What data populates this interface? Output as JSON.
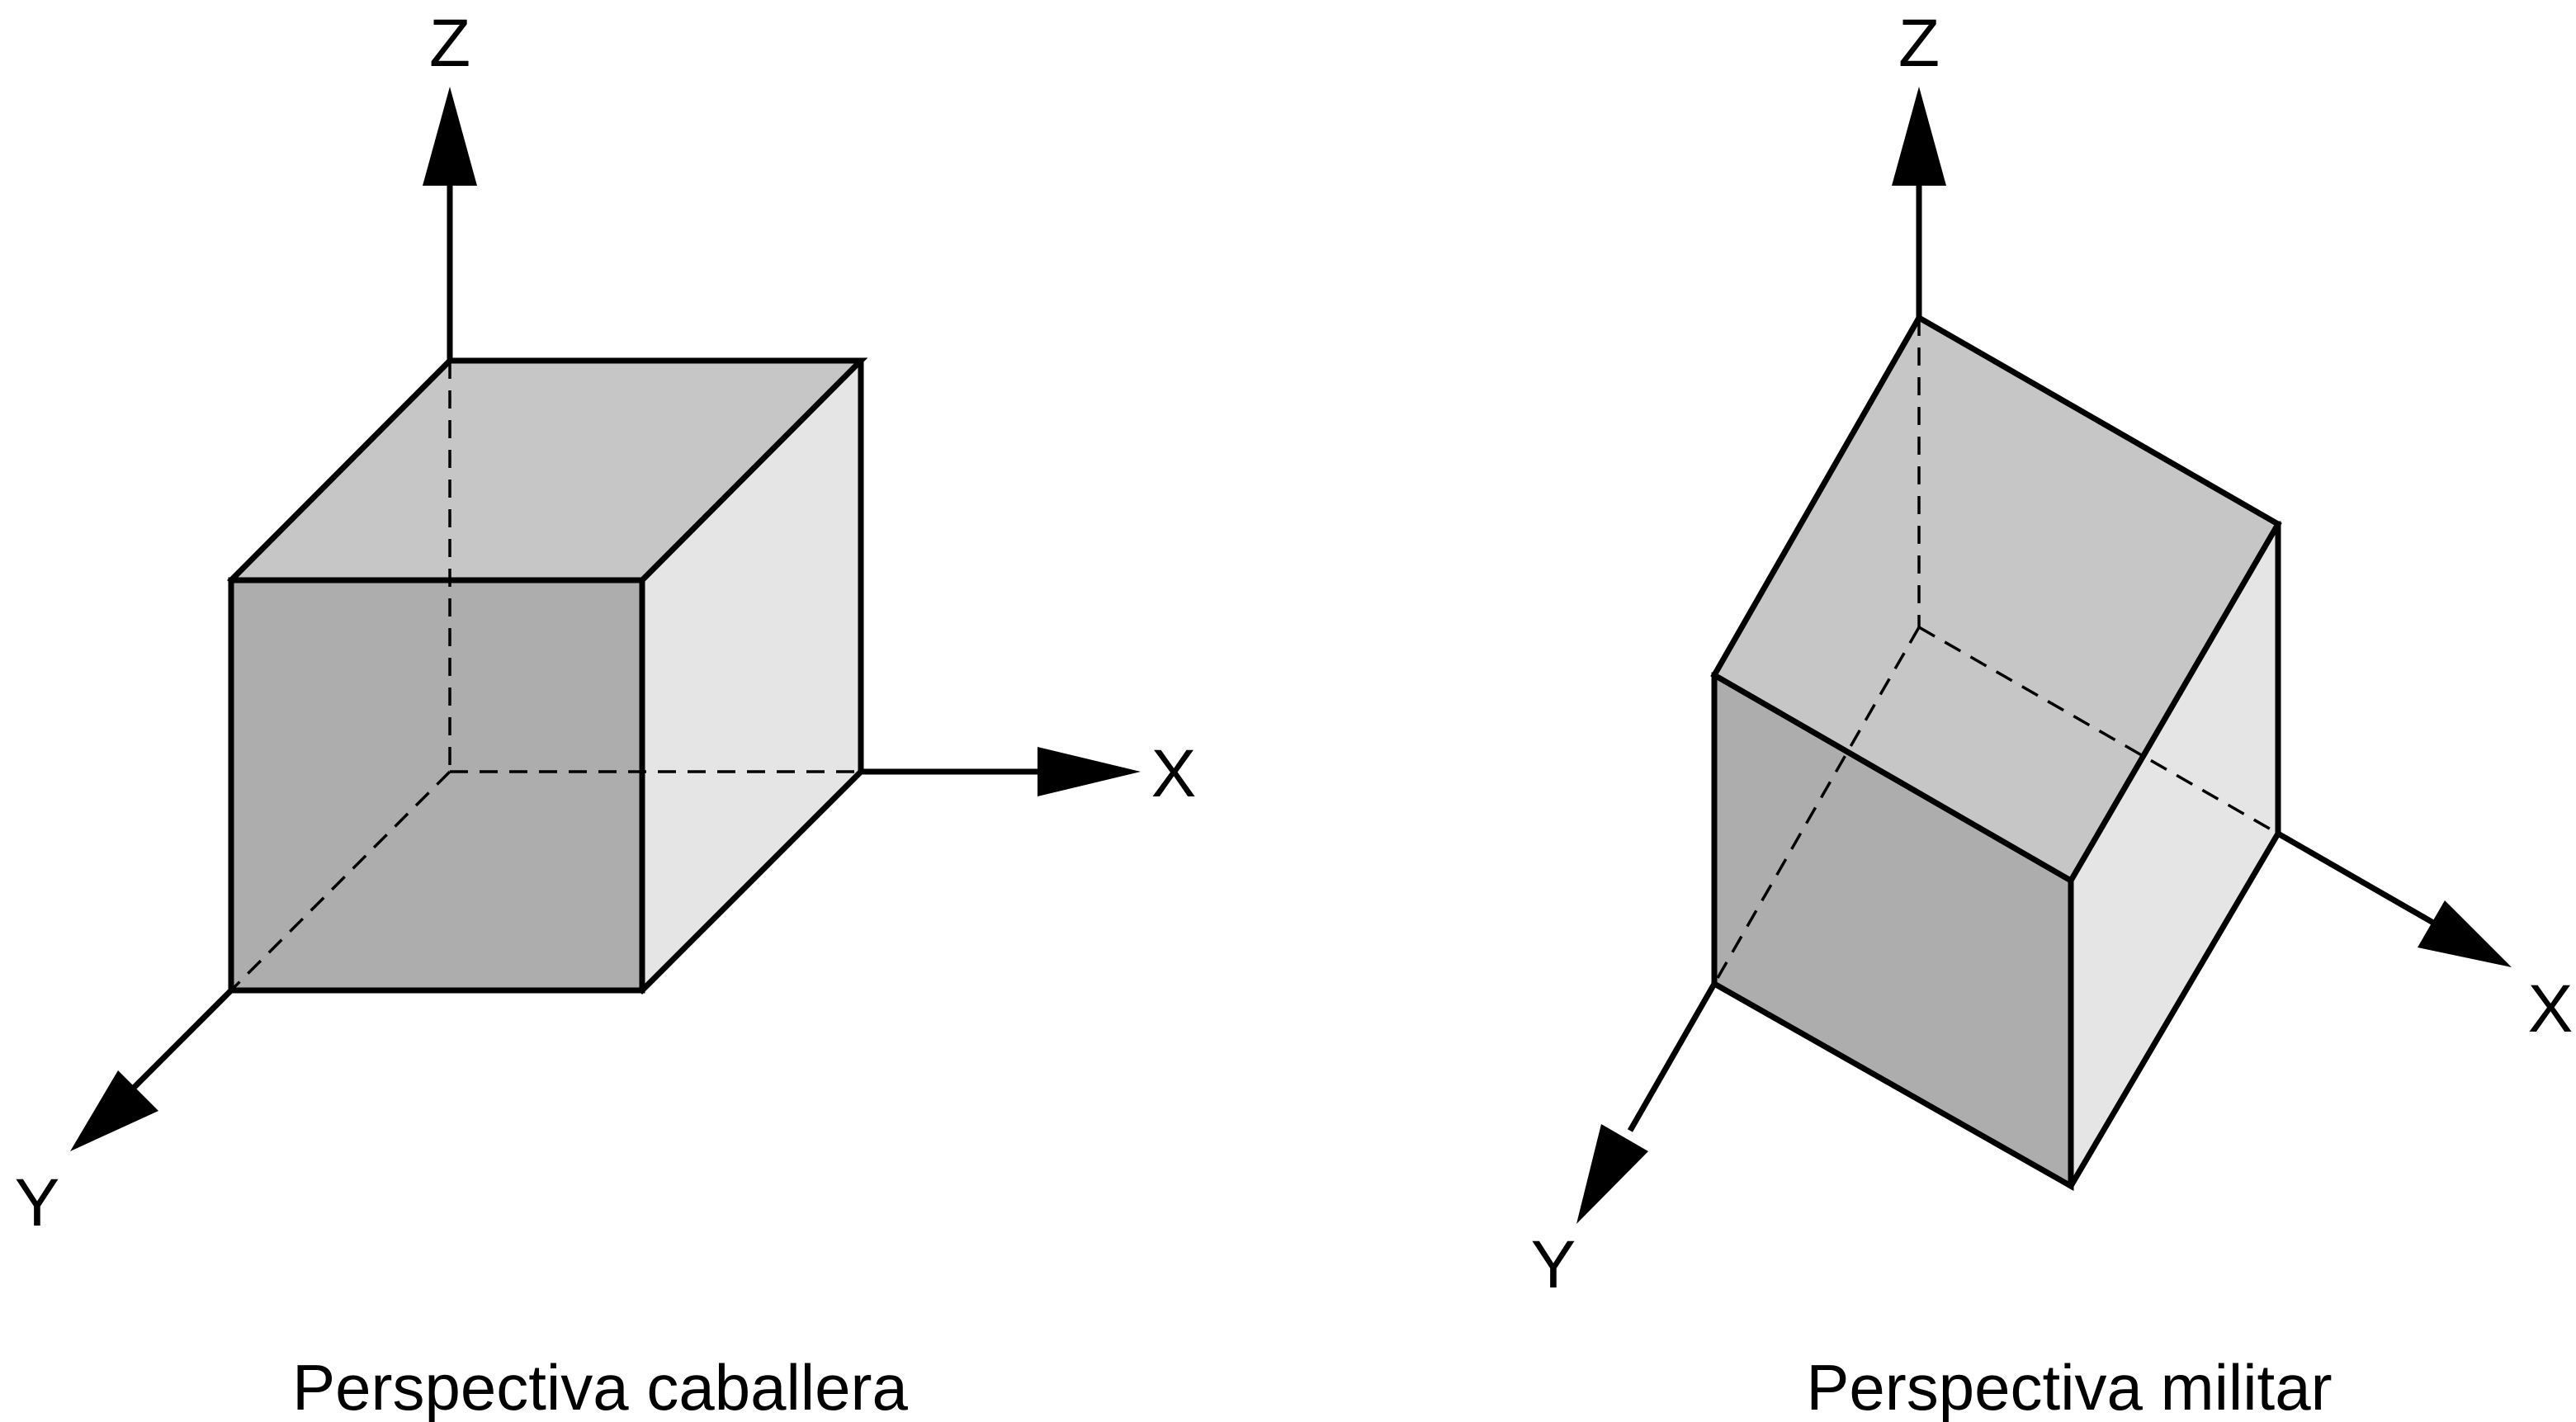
{
  "colors": {
    "face_front": "#adadad",
    "face_top": "#c6c6c6",
    "face_side": "#e5e5e5",
    "stroke": "#000000",
    "background": "#ffffff"
  },
  "left_figure": {
    "caption": "Perspectiva caballera",
    "axes": {
      "z": "Z",
      "x": "X",
      "y": "Y"
    }
  },
  "right_figure": {
    "caption": "Perspectiva militar",
    "axes": {
      "z": "Z",
      "x": "X",
      "y": "Y"
    }
  }
}
